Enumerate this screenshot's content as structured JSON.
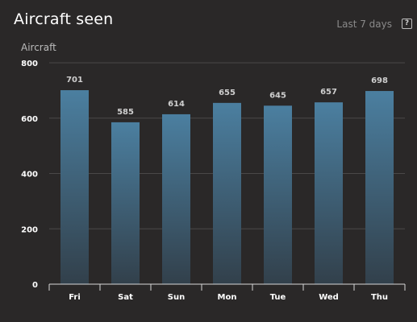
{
  "header": {
    "title": "Aircraft seen",
    "range_label": "Last 7 days",
    "help_glyph": "?"
  },
  "colors": {
    "background": "#2a2828",
    "gridline": "#4a4848",
    "bar_top": "#4b7fa0",
    "bar_bottom": "#32404b",
    "axis": "#d8d8d8"
  },
  "chart_data": {
    "type": "bar",
    "title": "Aircraft seen",
    "xlabel": "",
    "ylabel": "Aircraft",
    "ylim": [
      0,
      800
    ],
    "yticks": [
      0,
      200,
      400,
      600,
      800
    ],
    "grid": true,
    "legend": "none",
    "categories": [
      "Fri",
      "Sat",
      "Sun",
      "Mon",
      "Tue",
      "Wed",
      "Thu"
    ],
    "values": [
      701,
      585,
      614,
      655,
      645,
      657,
      698
    ]
  }
}
